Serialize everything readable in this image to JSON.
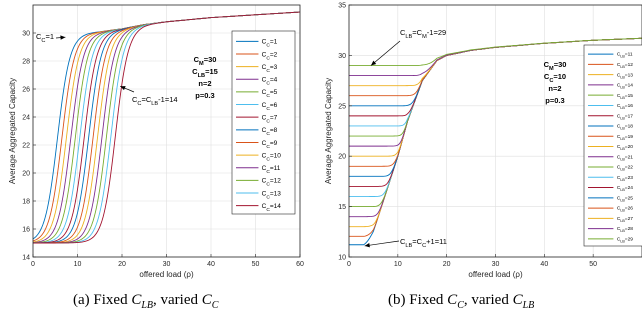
{
  "colors": [
    "#0072bd",
    "#d95319",
    "#edb120",
    "#7e2f8e",
    "#77ac30",
    "#4dbeee",
    "#a2142f"
  ],
  "charts": [
    {
      "type": "line",
      "caption": "(a) Fixed C_LB, varied C_C",
      "xlabel": "offered load (ρ)",
      "ylabel": "Average Aggregated Capacity",
      "xlim": [
        0,
        60
      ],
      "ylim": [
        14,
        32
      ],
      "xticks": [
        0,
        10,
        20,
        30,
        40,
        50,
        60
      ],
      "yticks": [
        14,
        16,
        18,
        20,
        22,
        24,
        26,
        28,
        30
      ],
      "grid": true,
      "legend_position": "right",
      "params": [
        "C_M=30",
        "C_LB=15",
        "n=2",
        "p=0.3"
      ],
      "annotations": [
        "C_C=1",
        "C_C=C_LB-1=14"
      ],
      "series": [
        {
          "name": "C_C=1",
          "floor": 15,
          "x50": 5.5
        },
        {
          "name": "C_C=2",
          "floor": 15,
          "x50": 6.5
        },
        {
          "name": "C_C=3",
          "floor": 15,
          "x50": 7.5
        },
        {
          "name": "C_C=4",
          "floor": 15,
          "x50": 8.5
        },
        {
          "name": "C_C=5",
          "floor": 15,
          "x50": 9.5
        },
        {
          "name": "C_C=6",
          "floor": 15,
          "x50": 10.5
        },
        {
          "name": "C_C=7",
          "floor": 15,
          "x50": 11.5
        },
        {
          "name": "C_C=8",
          "floor": 15,
          "x50": 12.5
        },
        {
          "name": "C_C=9",
          "floor": 15,
          "x50": 13.5
        },
        {
          "name": "C_C=10",
          "floor": 15,
          "x50": 14.5
        },
        {
          "name": "C_C=11",
          "floor": 15,
          "x50": 15.5
        },
        {
          "name": "C_C=12",
          "floor": 15,
          "x50": 16.5
        },
        {
          "name": "C_C=13",
          "floor": 15,
          "x50": 17.5
        },
        {
          "name": "C_C=14",
          "floor": 15,
          "x50": 18.5
        }
      ],
      "envelope": {
        "x": [
          10,
          15,
          20,
          25,
          30,
          40,
          50,
          60
        ],
        "y": [
          30.0,
          30.1,
          30.3,
          30.6,
          30.8,
          31.1,
          31.3,
          31.5
        ]
      }
    },
    {
      "type": "line",
      "caption": "(b) Fixed C_C, varied C_LB",
      "xlabel": "offered load (ρ)",
      "ylabel": "Average Aggregated Capacity",
      "xlim": [
        0,
        60
      ],
      "ylim": [
        10,
        35
      ],
      "xticks": [
        0,
        10,
        20,
        30,
        40,
        50
      ],
      "yticks": [
        10,
        15,
        20,
        25,
        30,
        35
      ],
      "grid": true,
      "legend_position": "right",
      "params": [
        "C_M=30",
        "C_C=10",
        "n=2",
        "p=0.3"
      ],
      "annotations": [
        "C_LB=C_M-1=29",
        "C_LB=C_C+1=11"
      ],
      "series": [
        {
          "name": "C_LB=11",
          "floor": 11
        },
        {
          "name": "C_LB=12",
          "floor": 12
        },
        {
          "name": "C_LB=13",
          "floor": 13
        },
        {
          "name": "C_LB=14",
          "floor": 14
        },
        {
          "name": "C_LB=15",
          "floor": 15
        },
        {
          "name": "C_LB=16",
          "floor": 16
        },
        {
          "name": "C_LB=17",
          "floor": 17
        },
        {
          "name": "C_LB=18",
          "floor": 18
        },
        {
          "name": "C_LB=19",
          "floor": 19
        },
        {
          "name": "C_LB=20",
          "floor": 20
        },
        {
          "name": "C_LB=21",
          "floor": 21
        },
        {
          "name": "C_LB=22",
          "floor": 22
        },
        {
          "name": "C_LB=23",
          "floor": 23
        },
        {
          "name": "C_LB=24",
          "floor": 24
        },
        {
          "name": "C_LB=25",
          "floor": 25
        },
        {
          "name": "C_LB=26",
          "floor": 26
        },
        {
          "name": "C_LB=27",
          "floor": 27
        },
        {
          "name": "C_LB=28",
          "floor": 28
        },
        {
          "name": "C_LB=29",
          "floor": 29
        }
      ],
      "envelope": {
        "x": [
          3,
          5,
          8,
          10,
          12,
          15,
          18,
          20,
          25,
          30,
          40,
          50,
          60
        ],
        "y": [
          10.5,
          12.5,
          17,
          20,
          23.5,
          27.5,
          29.5,
          30.0,
          30.5,
          30.8,
          31.2,
          31.5,
          31.7
        ]
      }
    }
  ]
}
